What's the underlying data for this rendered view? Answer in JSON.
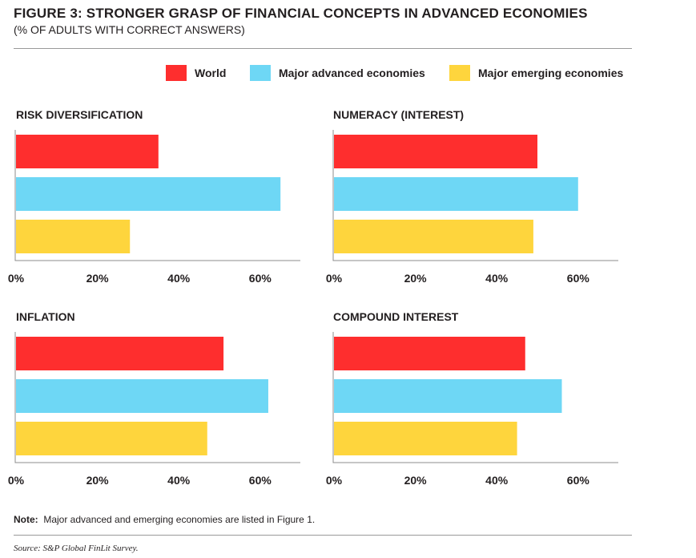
{
  "header": {
    "title": "FIGURE 3: STRONGER GRASP OF FINANCIAL CONCEPTS IN ADVANCED ECONOMIES",
    "subtitle": "(% OF ADULTS WITH CORRECT ANSWERS)"
  },
  "colors": {
    "World": "#fe2e2e",
    "Major advanced economies": "#6ed7f5",
    "Major emerging economies": "#fed53d"
  },
  "legend": {
    "items": [
      "World",
      "Major advanced economies",
      "Major emerging economies"
    ],
    "position": "top-right"
  },
  "chart_data": [
    {
      "type": "bar",
      "orientation": "horizontal",
      "title": "RISK DIVERSIFICATION",
      "categories": [
        "World",
        "Major advanced economies",
        "Major emerging economies"
      ],
      "values": [
        35,
        65,
        28
      ],
      "xlim": [
        0,
        70
      ],
      "xticks": [
        "0%",
        "20%",
        "40%",
        "60%"
      ]
    },
    {
      "type": "bar",
      "orientation": "horizontal",
      "title": "NUMERACY (INTEREST)",
      "categories": [
        "World",
        "Major advanced economies",
        "Major emerging economies"
      ],
      "values": [
        50,
        60,
        49
      ],
      "xlim": [
        0,
        70
      ],
      "xticks": [
        "0%",
        "20%",
        "40%",
        "60%"
      ]
    },
    {
      "type": "bar",
      "orientation": "horizontal",
      "title": "INFLATION",
      "categories": [
        "World",
        "Major advanced economies",
        "Major emerging economies"
      ],
      "values": [
        51,
        62,
        47
      ],
      "xlim": [
        0,
        70
      ],
      "xticks": [
        "0%",
        "20%",
        "40%",
        "60%"
      ]
    },
    {
      "type": "bar",
      "orientation": "horizontal",
      "title": "COMPOUND INTEREST",
      "categories": [
        "World",
        "Major advanced economies",
        "Major emerging economies"
      ],
      "values": [
        47,
        56,
        45
      ],
      "xlim": [
        0,
        70
      ],
      "xticks": [
        "0%",
        "20%",
        "40%",
        "60%"
      ]
    }
  ],
  "footer": {
    "note_label": "Note:",
    "note_text": "Major advanced and emerging economies are listed in Figure 1.",
    "source": "Source: S&P Global FinLit Survey."
  }
}
